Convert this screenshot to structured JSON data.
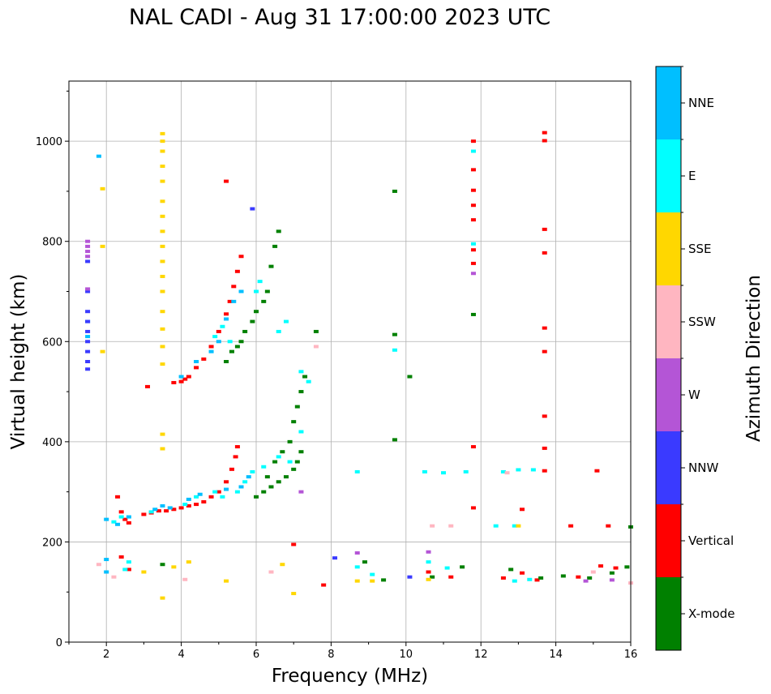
{
  "chart_data": {
    "type": "scatter",
    "title": "NAL CADI - Aug 31 17:00:00 2023 UTC",
    "xlabel": "Frequency (MHz)",
    "ylabel": "Virtual height (km)",
    "xlim": [
      1,
      16
    ],
    "ylim": [
      0,
      1120
    ],
    "xticks": [
      2,
      4,
      6,
      8,
      10,
      12,
      14,
      16
    ],
    "yticks": [
      0,
      200,
      400,
      600,
      800,
      1000
    ],
    "grid": true,
    "colorbar": {
      "label": "Azimuth Direction",
      "categories": [
        {
          "name": "X-mode",
          "color": "#008000"
        },
        {
          "name": "Vertical",
          "color": "#ff0000"
        },
        {
          "name": "NNW",
          "color": "#3a3aff"
        },
        {
          "name": "W",
          "color": "#b455d6"
        },
        {
          "name": "SSW",
          "color": "#ffb6c1"
        },
        {
          "name": "SSE",
          "color": "#ffd700"
        },
        {
          "name": "E",
          "color": "#00ffff"
        },
        {
          "name": "NNE",
          "color": "#00bfff"
        }
      ]
    },
    "series": [
      {
        "name": "Vertical",
        "points": [
          [
            2.3,
            290
          ],
          [
            2.4,
            260
          ],
          [
            2.5,
            245
          ],
          [
            2.6,
            238
          ],
          [
            3.0,
            255
          ],
          [
            3.2,
            258
          ],
          [
            3.4,
            262
          ],
          [
            3.6,
            262
          ],
          [
            3.8,
            265
          ],
          [
            4.0,
            268
          ],
          [
            4.2,
            272
          ],
          [
            4.4,
            275
          ],
          [
            4.6,
            280
          ],
          [
            4.8,
            290
          ],
          [
            5.0,
            300
          ],
          [
            5.2,
            320
          ],
          [
            5.35,
            345
          ],
          [
            5.45,
            370
          ],
          [
            5.5,
            390
          ],
          [
            3.1,
            510
          ],
          [
            3.8,
            518
          ],
          [
            4.0,
            520
          ],
          [
            4.1,
            525
          ],
          [
            4.2,
            530
          ],
          [
            4.4,
            548
          ],
          [
            4.6,
            565
          ],
          [
            4.8,
            590
          ],
          [
            5.0,
            620
          ],
          [
            5.2,
            655
          ],
          [
            5.3,
            680
          ],
          [
            5.4,
            710
          ],
          [
            5.5,
            740
          ],
          [
            5.6,
            770
          ],
          [
            5.2,
            920
          ],
          [
            7.0,
            195
          ],
          [
            7.8,
            114
          ],
          [
            11.8,
            1000
          ],
          [
            11.8,
            943
          ],
          [
            11.8,
            902
          ],
          [
            11.8,
            872
          ],
          [
            11.8,
            843
          ],
          [
            11.8,
            783
          ],
          [
            11.8,
            756
          ],
          [
            11.8,
            390
          ],
          [
            11.8,
            268
          ],
          [
            13.7,
            1017
          ],
          [
            13.7,
            1001
          ],
          [
            13.7,
            824
          ],
          [
            13.7,
            777
          ],
          [
            13.7,
            627
          ],
          [
            13.7,
            580
          ],
          [
            13.7,
            451
          ],
          [
            13.7,
            387
          ],
          [
            13.7,
            342
          ],
          [
            13.1,
            265
          ],
          [
            14.4,
            232
          ],
          [
            15.1,
            342
          ],
          [
            15.4,
            232
          ],
          [
            10.6,
            140
          ],
          [
            11.2,
            130
          ],
          [
            12.6,
            128
          ],
          [
            13.1,
            138
          ],
          [
            13.5,
            124
          ],
          [
            14.6,
            130
          ],
          [
            15.2,
            152
          ],
          [
            15.6,
            148
          ],
          [
            2.4,
            170
          ],
          [
            2.6,
            145
          ]
        ]
      },
      {
        "name": "X-mode",
        "points": [
          [
            5.2,
            560
          ],
          [
            5.35,
            580
          ],
          [
            5.5,
            590
          ],
          [
            5.6,
            600
          ],
          [
            5.7,
            620
          ],
          [
            5.9,
            640
          ],
          [
            6.0,
            660
          ],
          [
            6.2,
            680
          ],
          [
            6.3,
            700
          ],
          [
            6.4,
            750
          ],
          [
            6.5,
            790
          ],
          [
            6.6,
            820
          ],
          [
            6.0,
            290
          ],
          [
            6.2,
            300
          ],
          [
            6.4,
            310
          ],
          [
            6.6,
            320
          ],
          [
            6.8,
            330
          ],
          [
            7.0,
            345
          ],
          [
            7.1,
            360
          ],
          [
            7.2,
            380
          ],
          [
            6.3,
            330
          ],
          [
            6.5,
            360
          ],
          [
            6.7,
            380
          ],
          [
            6.9,
            400
          ],
          [
            7.0,
            440
          ],
          [
            7.1,
            470
          ],
          [
            7.2,
            500
          ],
          [
            7.3,
            530
          ],
          [
            7.6,
            620
          ],
          [
            9.7,
            900
          ],
          [
            9.7,
            614
          ],
          [
            9.7,
            404
          ],
          [
            10.1,
            530
          ],
          [
            11.8,
            654
          ],
          [
            10.7,
            130
          ],
          [
            11.5,
            150
          ],
          [
            12.8,
            145
          ],
          [
            13.6,
            128
          ],
          [
            14.2,
            132
          ],
          [
            14.9,
            128
          ],
          [
            15.5,
            138
          ],
          [
            15.9,
            150
          ],
          [
            16.0,
            230
          ],
          [
            8.9,
            160
          ],
          [
            9.4,
            124
          ],
          [
            3.5,
            155
          ]
        ]
      },
      {
        "name": "E",
        "points": [
          [
            2.2,
            240
          ],
          [
            2.4,
            250
          ],
          [
            3.2,
            260
          ],
          [
            4.1,
            275
          ],
          [
            4.4,
            290
          ],
          [
            4.9,
            300
          ],
          [
            5.1,
            290
          ],
          [
            5.5,
            300
          ],
          [
            5.7,
            320
          ],
          [
            5.9,
            340
          ],
          [
            6.2,
            350
          ],
          [
            6.6,
            370
          ],
          [
            6.9,
            360
          ],
          [
            7.2,
            420
          ],
          [
            4.9,
            610
          ],
          [
            5.1,
            630
          ],
          [
            5.3,
            600
          ],
          [
            6.0,
            700
          ],
          [
            6.1,
            720
          ],
          [
            6.6,
            620
          ],
          [
            6.8,
            640
          ],
          [
            7.2,
            540
          ],
          [
            7.4,
            520
          ],
          [
            8.7,
            340
          ],
          [
            10.5,
            340
          ],
          [
            11.0,
            338
          ],
          [
            11.6,
            340
          ],
          [
            12.4,
            232
          ],
          [
            12.6,
            340
          ],
          [
            13.0,
            344
          ],
          [
            13.4,
            344
          ],
          [
            12.9,
            232
          ],
          [
            8.7,
            150
          ],
          [
            9.1,
            135
          ],
          [
            10.6,
            160
          ],
          [
            11.1,
            148
          ],
          [
            12.9,
            122
          ],
          [
            13.3,
            125
          ],
          [
            2.6,
            160
          ],
          [
            2.5,
            145
          ],
          [
            11.8,
            980
          ],
          [
            11.8,
            795
          ],
          [
            9.7,
            583
          ]
        ]
      },
      {
        "name": "NNE",
        "points": [
          [
            2.0,
            245
          ],
          [
            2.3,
            235
          ],
          [
            2.6,
            250
          ],
          [
            3.3,
            265
          ],
          [
            3.5,
            272
          ],
          [
            3.7,
            268
          ],
          [
            4.2,
            285
          ],
          [
            4.5,
            295
          ],
          [
            5.2,
            305
          ],
          [
            5.6,
            310
          ],
          [
            5.8,
            330
          ],
          [
            4.0,
            530
          ],
          [
            4.4,
            560
          ],
          [
            4.8,
            580
          ],
          [
            5.0,
            600
          ],
          [
            5.2,
            645
          ],
          [
            5.4,
            680
          ],
          [
            5.6,
            700
          ],
          [
            1.8,
            970
          ],
          [
            1.5,
            610
          ],
          [
            1.5,
            640
          ],
          [
            2.0,
            140
          ],
          [
            2.0,
            165
          ]
        ]
      },
      {
        "name": "NNW",
        "points": [
          [
            1.5,
            760
          ],
          [
            1.5,
            700
          ],
          [
            1.5,
            660
          ],
          [
            1.5,
            640
          ],
          [
            1.5,
            620
          ],
          [
            1.5,
            600
          ],
          [
            1.5,
            580
          ],
          [
            1.5,
            560
          ],
          [
            1.5,
            545
          ],
          [
            5.9,
            865
          ],
          [
            10.1,
            130
          ],
          [
            8.1,
            168
          ]
        ]
      },
      {
        "name": "W",
        "points": [
          [
            1.5,
            800
          ],
          [
            1.5,
            790
          ],
          [
            1.5,
            780
          ],
          [
            1.5,
            770
          ],
          [
            1.5,
            705
          ],
          [
            8.7,
            178
          ],
          [
            11.8,
            736
          ],
          [
            7.2,
            300
          ],
          [
            15.5,
            124
          ],
          [
            14.8,
            122
          ],
          [
            10.6,
            180
          ]
        ]
      },
      {
        "name": "SSW",
        "points": [
          [
            1.8,
            155
          ],
          [
            2.2,
            130
          ],
          [
            4.1,
            125
          ],
          [
            6.4,
            140
          ],
          [
            10.7,
            232
          ],
          [
            11.2,
            232
          ],
          [
            12.7,
            338
          ],
          [
            15.0,
            140
          ],
          [
            16.0,
            118
          ],
          [
            7.6,
            590
          ]
        ]
      },
      {
        "name": "SSE",
        "points": [
          [
            3.5,
            1015
          ],
          [
            3.5,
            1000
          ],
          [
            3.5,
            980
          ],
          [
            3.5,
            950
          ],
          [
            3.5,
            920
          ],
          [
            3.5,
            880
          ],
          [
            3.5,
            850
          ],
          [
            3.5,
            820
          ],
          [
            3.5,
            790
          ],
          [
            3.5,
            760
          ],
          [
            3.5,
            730
          ],
          [
            3.5,
            700
          ],
          [
            3.5,
            660
          ],
          [
            3.5,
            625
          ],
          [
            3.5,
            590
          ],
          [
            3.5,
            555
          ],
          [
            3.5,
            415
          ],
          [
            3.5,
            386
          ],
          [
            3.5,
            88
          ],
          [
            1.9,
            905
          ],
          [
            1.9,
            790
          ],
          [
            1.9,
            580
          ],
          [
            3.0,
            140
          ],
          [
            3.8,
            150
          ],
          [
            4.2,
            160
          ],
          [
            5.2,
            122
          ],
          [
            6.7,
            155
          ],
          [
            7.0,
            97
          ],
          [
            8.7,
            122
          ],
          [
            9.1,
            122
          ],
          [
            10.6,
            125
          ],
          [
            13.0,
            232
          ]
        ]
      }
    ]
  }
}
